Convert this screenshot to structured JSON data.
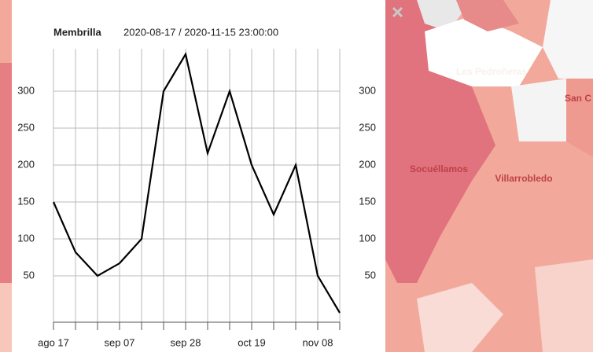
{
  "chart_data": {
    "type": "line",
    "title": "Membrilla",
    "subtitle": "2020-08-17 / 2020-11-15 23:00:00",
    "categories": [
      "ago 17",
      null,
      null,
      "sep 07",
      null,
      null,
      "sep 28",
      null,
      null,
      "oct 19",
      null,
      null,
      "nov 08",
      null
    ],
    "values": [
      150,
      82,
      50,
      67,
      100,
      300,
      350,
      216,
      300,
      200,
      133,
      200,
      50,
      0
    ],
    "color": "#000000",
    "ylim": [
      0,
      350
    ],
    "yticks": [
      50,
      100,
      150,
      200,
      250,
      300
    ],
    "grid": true
  },
  "map_labels": [
    "Las Pedroñeras",
    "San C",
    "Socuéllamos",
    "Villarrobledo"
  ]
}
